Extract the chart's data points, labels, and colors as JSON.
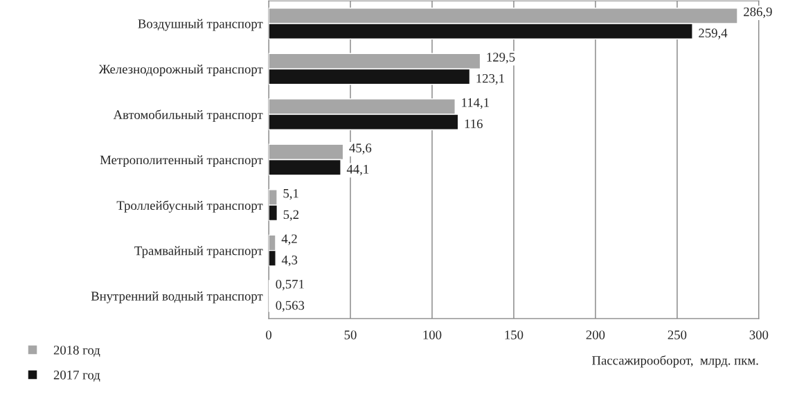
{
  "chart_data": {
    "type": "bar",
    "orientation": "horizontal",
    "xlabel": "Пассажирооборот,  млрд. пкм.",
    "categories": [
      "Воздушный транспорт",
      "Железнодорожный транспорт",
      "Автомобильный транспорт",
      "Метрополитенный транспорт",
      "Троллейбусный транспорт",
      "Трамвайный транспорт",
      "Внутренний водный транспорт"
    ],
    "series": [
      {
        "name": "2018 год",
        "color": "#a6a6a6",
        "values": [
          286.9,
          129.5,
          114.1,
          45.6,
          5.1,
          4.2,
          0.571
        ],
        "value_labels": [
          "286,9",
          "129,5",
          "114,1",
          "45,6",
          "5,1",
          "4,2",
          "0,571"
        ]
      },
      {
        "name": "2017 год",
        "color": "#141414",
        "values": [
          259.4,
          123.1,
          116,
          44.1,
          5.2,
          4.3,
          0.563
        ],
        "value_labels": [
          "259,4",
          "123,1",
          "116",
          "44,1",
          "5,2",
          "4,3",
          "0,563"
        ]
      }
    ],
    "xlim": [
      0,
      300
    ],
    "xticks": [
      0,
      50,
      100,
      150,
      200,
      250,
      300
    ],
    "grid": "x",
    "legend": "bottom left"
  }
}
